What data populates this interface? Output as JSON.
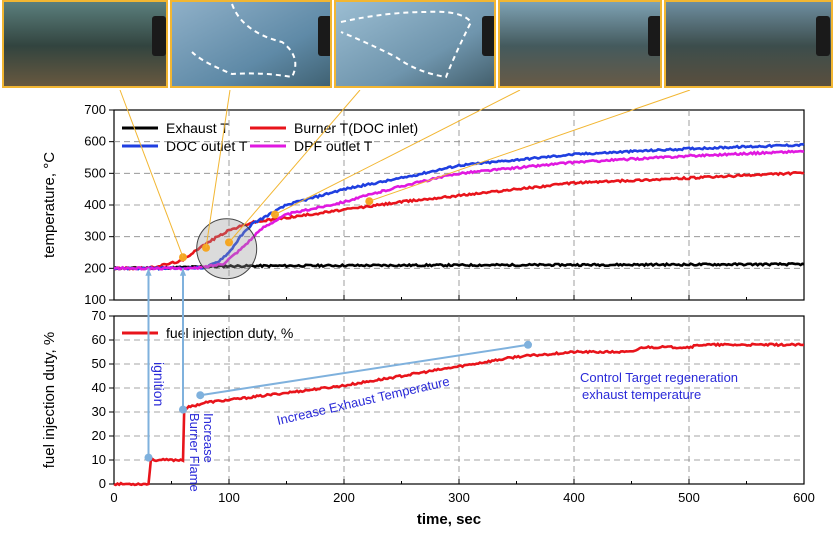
{
  "photos": [
    {
      "label": "photo-1"
    },
    {
      "label": "photo-2"
    },
    {
      "label": "photo-3"
    },
    {
      "label": "photo-4"
    },
    {
      "label": "photo-5"
    }
  ],
  "chart_data": [
    {
      "type": "line",
      "ylabel": "temperature, °C",
      "ylim": [
        100,
        700
      ],
      "yticks": [
        "100",
        "200",
        "300",
        "400",
        "500",
        "600",
        "700"
      ],
      "xlim": [
        0,
        600
      ],
      "grid": true,
      "legend": "top-left",
      "series": [
        {
          "name": "Exhaust T",
          "color": "#000000",
          "x": [
            0,
            50,
            80,
            100,
            150,
            200,
            300,
            400,
            500,
            600
          ],
          "y": [
            200,
            202,
            205,
            207,
            208,
            209,
            210,
            211,
            212,
            213
          ]
        },
        {
          "name": "Burner T(DOC inlet)",
          "color": "#e8141b",
          "x": [
            0,
            30,
            60,
            70,
            90,
            100,
            120,
            150,
            200,
            250,
            300,
            400,
            500,
            600
          ],
          "y": [
            200,
            200,
            225,
            255,
            300,
            320,
            345,
            360,
            385,
            410,
            430,
            470,
            485,
            502
          ]
        },
        {
          "name": "DOC outlet T",
          "color": "#1f3fe0",
          "x": [
            0,
            60,
            80,
            90,
            100,
            110,
            120,
            150,
            200,
            250,
            300,
            400,
            500,
            600
          ],
          "y": [
            200,
            200,
            203,
            220,
            250,
            300,
            340,
            400,
            450,
            485,
            525,
            560,
            578,
            590
          ]
        },
        {
          "name": "DPF outlet T",
          "color": "#e019e0",
          "x": [
            0,
            70,
            80,
            95,
            110,
            130,
            150,
            200,
            250,
            300,
            400,
            500,
            600
          ],
          "y": [
            200,
            200,
            205,
            215,
            260,
            330,
            370,
            410,
            460,
            500,
            535,
            555,
            570
          ]
        }
      ],
      "markers": [
        {
          "x": 60,
          "y": 235
        },
        {
          "x": 80,
          "y": 265
        },
        {
          "x": 100,
          "y": 282
        },
        {
          "x": 140,
          "y": 370
        },
        {
          "x": 222,
          "y": 412
        }
      ]
    },
    {
      "type": "line",
      "ylabel": "fuel injection duty, %",
      "ylim": [
        0,
        70
      ],
      "yticks": [
        "0",
        "10",
        "20",
        "30",
        "40",
        "50",
        "60",
        "70"
      ],
      "xlim": [
        0,
        600
      ],
      "xticks": [
        "0",
        "100",
        "200",
        "300",
        "400",
        "500",
        "600"
      ],
      "xlabel": "time, sec",
      "grid": true,
      "series": [
        {
          "name": "fuel injection duty, %",
          "color": "#e8141b",
          "x": [
            0,
            30,
            31,
            32,
            58,
            60,
            61,
            65,
            80,
            100,
            150,
            200,
            250,
            300,
            350,
            400,
            450,
            460,
            480,
            500,
            510,
            600
          ],
          "y": [
            0,
            0,
            5,
            10,
            10,
            10,
            31,
            32,
            34,
            35,
            38,
            41,
            45,
            49,
            53,
            55,
            55,
            57,
            57,
            57,
            58,
            58
          ]
        }
      ]
    }
  ],
  "annotations": {
    "ignition": "ignition",
    "increase_burner_1": "Increase",
    "increase_burner_2": "Burner Flame",
    "increase_exhaust": "Increase Exhaust Temperature",
    "control_target_1": "Control Target regeneration",
    "control_target_2": "exhaust temperature"
  }
}
